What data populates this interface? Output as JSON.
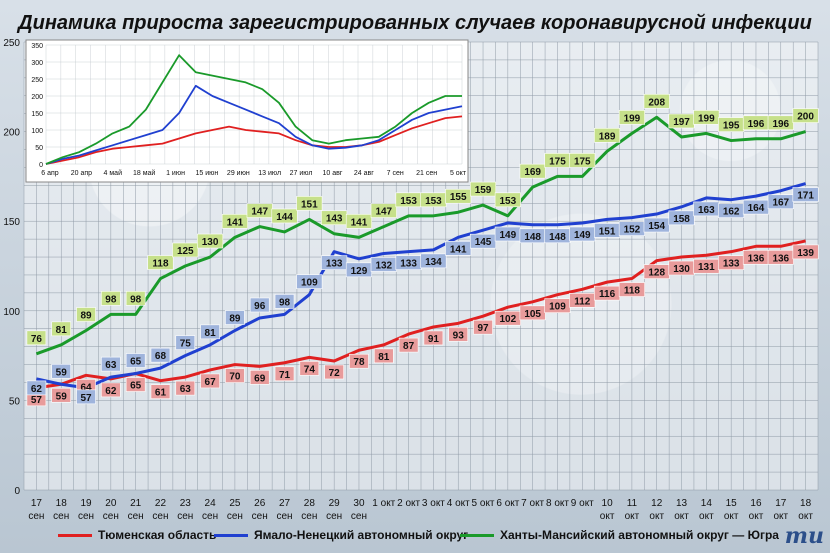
{
  "title": "Динамика прироста зарегистрированных случаев коронавирусной инфекции",
  "legend": {
    "tyumen": "Тюменская область",
    "yanao": "Ямало-Ненецкий автономный округ",
    "hmao": "Ханты-Мансийский автономный округ — Югра"
  },
  "logo": "mu",
  "chart_data": [
    {
      "type": "line",
      "x": [
        "17 сен",
        "18 сен",
        "19 сен",
        "20 сен",
        "21 сен",
        "22 сен",
        "23 сен",
        "24 сен",
        "25 сен",
        "26 сен",
        "27 сен",
        "28 сен",
        "29 сен",
        "30 сен",
        "1 окт",
        "2 окт",
        "3 окт",
        "4 окт",
        "5 окт",
        "6 окт",
        "7 окт",
        "8 окт",
        "9 окт",
        "10 окт",
        "11 окт",
        "12 окт",
        "13 окт",
        "14 окт",
        "15 окт",
        "16 окт",
        "17 окт",
        "18 окт"
      ],
      "x_tick_labels": [
        [
          "17",
          "сен"
        ],
        [
          "18",
          "сен"
        ],
        [
          "19",
          "сен"
        ],
        [
          "20",
          "сен"
        ],
        [
          "21",
          "сен"
        ],
        [
          "22",
          "сен"
        ],
        [
          "23",
          "сен"
        ],
        [
          "24",
          "сен"
        ],
        [
          "25",
          "сен"
        ],
        [
          "26",
          "сен"
        ],
        [
          "27",
          "сен"
        ],
        [
          "28",
          "сен"
        ],
        [
          "29",
          "сен"
        ],
        [
          "30",
          "сен"
        ],
        [
          "1 окт",
          ""
        ],
        [
          "2 окт",
          ""
        ],
        [
          "3 окт",
          ""
        ],
        [
          "4 окт",
          ""
        ],
        [
          "5 окт",
          ""
        ],
        [
          "6 окт",
          ""
        ],
        [
          "7 окт",
          ""
        ],
        [
          "8 окт",
          ""
        ],
        [
          "9 окт",
          ""
        ],
        [
          "10",
          "окт"
        ],
        [
          "11",
          "окт"
        ],
        [
          "12",
          "окт"
        ],
        [
          "13",
          "окт"
        ],
        [
          "14",
          "окт"
        ],
        [
          "15",
          "окт"
        ],
        [
          "16",
          "окт"
        ],
        [
          "17",
          "окт"
        ],
        [
          "18",
          "окт"
        ]
      ],
      "ylim": [
        0,
        250
      ],
      "yticks": [
        0,
        50,
        100,
        150,
        200,
        250
      ],
      "grid": true,
      "series": [
        {
          "name": "Тюменская область",
          "color": "#e02020",
          "label_color": "#e89b9b",
          "values": [
            57,
            59,
            64,
            62,
            65,
            61,
            63,
            67,
            70,
            69,
            71,
            74,
            72,
            78,
            81,
            87,
            91,
            93,
            97,
            102,
            105,
            109,
            112,
            116,
            118,
            128,
            130,
            131,
            133,
            136,
            136,
            139
          ]
        },
        {
          "name": "Ямало-Ненецкий автономный округ",
          "color": "#2040d0",
          "label_color": "#9fb4dc",
          "values": [
            62,
            59,
            57,
            63,
            65,
            68,
            75,
            81,
            89,
            96,
            98,
            109,
            133,
            129,
            132,
            133,
            134,
            141,
            145,
            149,
            148,
            148,
            149,
            151,
            152,
            154,
            158,
            163,
            162,
            164,
            167,
            171
          ]
        },
        {
          "name": "Ханты-Мансийский автономный округ — Югра",
          "color": "#1a9a2a",
          "label_color": "#c6e08a",
          "values": [
            76,
            81,
            89,
            98,
            98,
            118,
            125,
            130,
            141,
            147,
            144,
            151,
            143,
            141,
            147,
            153,
            153,
            155,
            159,
            153,
            169,
            175,
            175,
            189,
            199,
            208,
            197,
            199,
            195,
            196,
            196,
            200
          ]
        }
      ]
    },
    {
      "type": "line",
      "x_tick_labels": [
        "6 апр",
        "20 апр",
        "4 май",
        "18 май",
        "1 июн",
        "15 июн",
        "29 июн",
        "13 июл",
        "27 июл",
        "10 авг",
        "24 авг",
        "7 сен",
        "21 сен",
        "5 окт"
      ],
      "ylim": [
        0,
        350
      ],
      "yticks": [
        0,
        50,
        100,
        150,
        200,
        250,
        300,
        350
      ],
      "grid": true,
      "series": [
        {
          "name": "Тюменская область",
          "color": "#e02020",
          "values": [
            0,
            10,
            20,
            35,
            45,
            50,
            55,
            60,
            75,
            90,
            100,
            110,
            100,
            95,
            90,
            70,
            55,
            50,
            50,
            55,
            65,
            85,
            105,
            120,
            135,
            140
          ]
        },
        {
          "name": "Ямало-Ненецкий автономный округ",
          "color": "#2040d0",
          "values": [
            0,
            15,
            25,
            40,
            55,
            70,
            85,
            100,
            150,
            230,
            200,
            180,
            160,
            140,
            120,
            80,
            55,
            45,
            48,
            55,
            70,
            100,
            130,
            150,
            160,
            170
          ]
        },
        {
          "name": "Ханты-Мансийский автономный округ — Югра",
          "color": "#1a9a2a",
          "values": [
            0,
            20,
            35,
            60,
            90,
            110,
            160,
            240,
            320,
            270,
            260,
            250,
            240,
            220,
            180,
            110,
            70,
            60,
            70,
            75,
            80,
            110,
            150,
            180,
            200,
            200
          ]
        }
      ]
    }
  ]
}
